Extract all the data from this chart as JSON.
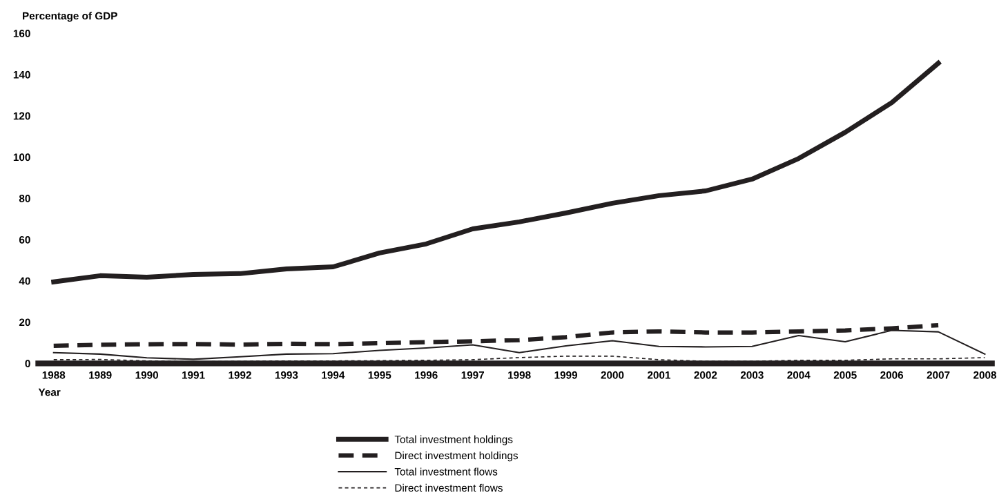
{
  "chart_data": {
    "type": "line",
    "ylabel": "Percentage of GDP",
    "xlabel": "Year",
    "x": [
      1988,
      1989,
      1990,
      1991,
      1992,
      1993,
      1994,
      1995,
      1996,
      1997,
      1998,
      1999,
      2000,
      2001,
      2002,
      2003,
      2004,
      2005,
      2006,
      2007,
      2008
    ],
    "xlim": [
      1987.67,
      2008.15
    ],
    "xticks": [
      1988,
      1989,
      1990,
      1991,
      1992,
      1993,
      1994,
      1995,
      1996,
      1997,
      1998,
      1999,
      2000,
      2001,
      2002,
      2003,
      2004,
      2005,
      2006,
      2007,
      2008
    ],
    "ylim": [
      0,
      160
    ],
    "yticks": [
      0,
      20,
      40,
      60,
      80,
      100,
      120,
      140,
      160
    ],
    "grid": false,
    "legend": "bottom",
    "marker": "none",
    "series": [
      {
        "name": "Total investment holdings",
        "color": "#231f20",
        "line_style": "solid",
        "values": [
          39.5,
          42.5,
          41.8,
          43.1,
          43.5,
          45.8,
          46.8,
          53.5,
          57.9,
          65.2,
          68.6,
          72.9,
          77.6,
          81.3,
          83.6,
          89.3,
          99.3,
          112,
          126.4,
          145.5,
          null
        ]
      },
      {
        "name": "Direct investment holdings",
        "color": "#231f20",
        "line_style": "dashed",
        "values": [
          8.5,
          9,
          9.3,
          9.4,
          9.1,
          9.5,
          9.3,
          9.8,
          10.3,
          10.7,
          11.3,
          12.7,
          15,
          15.5,
          15,
          15,
          15.5,
          16,
          17,
          18.5,
          null
        ]
      },
      {
        "name": "Total investment flows",
        "color": "#231f20",
        "line_style": "solid",
        "values": [
          5.2,
          4.5,
          2.7,
          2,
          3.2,
          4.5,
          4.7,
          6.3,
          7.5,
          9,
          5.2,
          8.5,
          11,
          8.2,
          8,
          8.2,
          13.5,
          10.5,
          16,
          15.3,
          4.5
        ]
      },
      {
        "name": "Direct investment flows",
        "color": "#231f20",
        "line_style": "dotted",
        "values": [
          1.8,
          1.9,
          1.2,
          0.8,
          1,
          1.2,
          1.2,
          1.3,
          1.5,
          1.8,
          2.8,
          3.5,
          3.5,
          1.8,
          1,
          1,
          1.5,
          1.5,
          2.2,
          2.2,
          2.8
        ]
      }
    ]
  }
}
